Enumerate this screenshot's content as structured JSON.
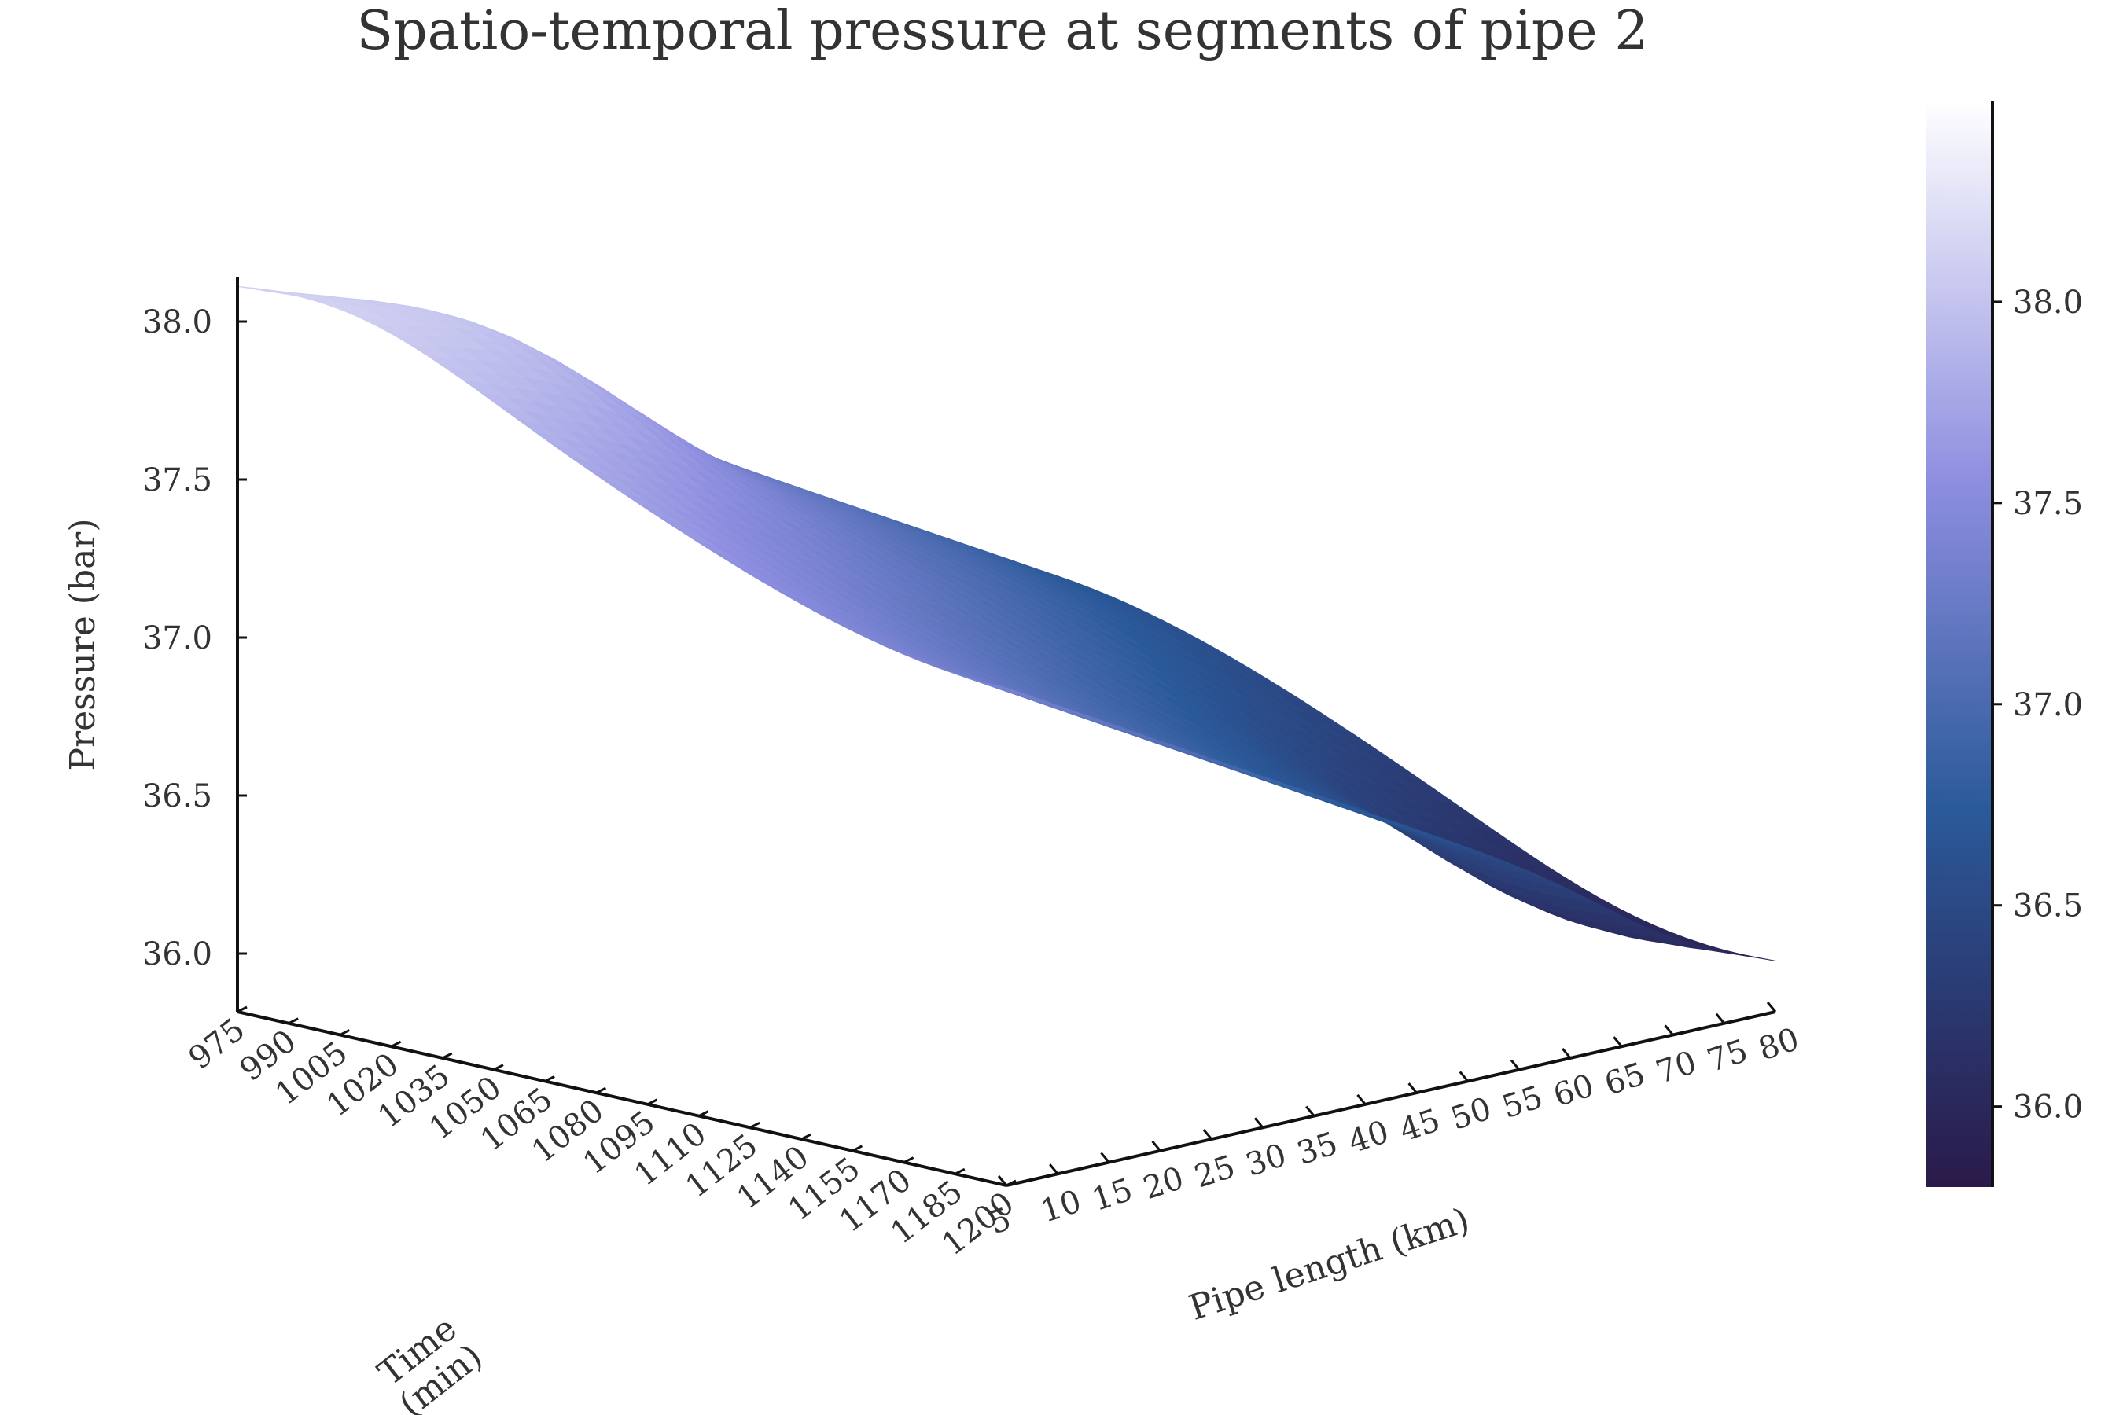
{
  "chart_data": {
    "type": "surface",
    "title": "Spatio-temporal pressure at segments of pipe 2",
    "zlabel": "Pressure (bar)",
    "xlabel": "Time\n(min)",
    "ylabel": "Pipe length (km)",
    "time_ticks": [
      "975",
      "990",
      "1005",
      "1020",
      "1035",
      "1050",
      "1065",
      "1080",
      "1095",
      "1110",
      "1125",
      "1140",
      "1155",
      "1170",
      "1185",
      "1200"
    ],
    "length_ticks": [
      "5",
      "10",
      "15",
      "20",
      "25",
      "30",
      "35",
      "40",
      "45",
      "50",
      "55",
      "60",
      "65",
      "70",
      "75",
      "80"
    ],
    "pressure_ticks": [
      "36.0",
      "36.5",
      "37.0",
      "37.5",
      "38.0"
    ],
    "colorbar_ticks": [
      "36.0",
      "36.5",
      "37.0",
      "37.5",
      "38.0"
    ],
    "time_range": [
      975,
      1200
    ],
    "length_range": [
      5,
      80
    ],
    "pressure_range": [
      35.8,
      38.5
    ],
    "colorbar_range": [
      35.8,
      38.5
    ],
    "colormap": [
      "#2a1a4a",
      "#2b5a9a",
      "#8e8ee0",
      "#ffffff"
    ],
    "series": [
      {
        "time": 975,
        "length": [
          5,
          80
        ],
        "pressure": [
          38.07,
          36.69
        ]
      },
      {
        "time": 1200,
        "length": [
          5,
          80
        ],
        "pressure": [
          37.39,
          36.0
        ]
      }
    ]
  }
}
